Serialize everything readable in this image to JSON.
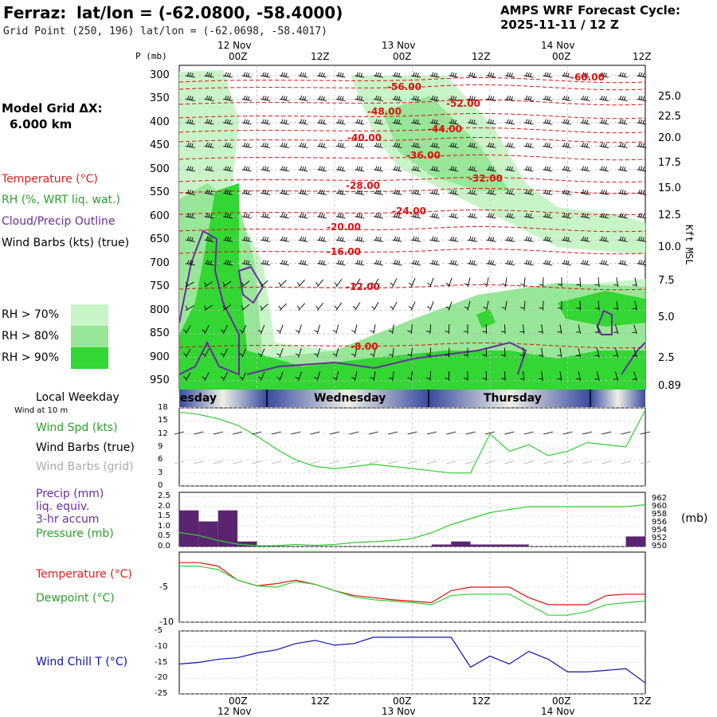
{
  "header": {
    "station": "Ferraz:",
    "latlon": "lat/lon = (-62.0800, -58.4000)",
    "grid_point": "Grid Point (250, 196) lat/lon = (-62.0698, -58.4017)",
    "cycle_title": "AMPS WRF Forecast Cycle:",
    "cycle_value": "2025-11-11 / 12  Z"
  },
  "sidebar": {
    "model_grid_label": "Model Grid ΔX:",
    "model_grid_value": "6.000 km",
    "legend": [
      {
        "text": "Temperature (°C)",
        "color": "#e0201c"
      },
      {
        "text": "RH (%, WRT liq. wat.)",
        "color": "#2ca02c"
      },
      {
        "text": "Cloud/Precip Outline",
        "color": "#6a2c9e"
      },
      {
        "text": "Wind Barbs (kts) (true)",
        "color": "#000000"
      }
    ],
    "rh_levels": [
      {
        "text": "RH > 70%",
        "color": "#c8f5c8"
      },
      {
        "text": "RH > 80%",
        "color": "#8fe08f"
      },
      {
        "text": "RH > 90%",
        "color": "#2fd62f"
      }
    ]
  },
  "colors": {
    "temp": "#e01010",
    "rh70": "#c8f5c8",
    "rh80": "#98e698",
    "rh90": "#33d633",
    "cloud": "#6a2c9e",
    "wind": "#33cc33",
    "precip": "#5a2470",
    "pressure": "#33cc33",
    "dew": "#33cc33",
    "chill": "#1010b0",
    "day_band": "#3a4aa0"
  },
  "time_axis": {
    "top_labels": [
      {
        "top": "12 Nov",
        "bottom": "00Z"
      },
      {
        "top": "",
        "bottom": "12Z"
      },
      {
        "top": "13 Nov",
        "bottom": "00Z"
      },
      {
        "top": "",
        "bottom": "12Z"
      },
      {
        "top": "14 Nov",
        "bottom": "00Z"
      },
      {
        "top": "",
        "bottom": "12Z"
      }
    ],
    "hours": [
      12,
      24,
      36,
      48,
      60,
      72
    ]
  },
  "main_panel": {
    "p_label": "P (mb)",
    "right_label": "Kft MSL",
    "pressure_ticks": [
      "300",
      "350",
      "400",
      "450",
      "500",
      "550",
      "600",
      "650",
      "700",
      "750",
      "800",
      "850",
      "900",
      "950"
    ],
    "height_ticks": [
      "25.0",
      "22.5",
      "20.0",
      "17.5",
      "15.0",
      "12.5",
      "10.0",
      "7.5",
      "5.0",
      "2.5",
      "0.89"
    ],
    "temp_labels": [
      "-56.00",
      "-60.00",
      "-52.00",
      "-48.00",
      "-44.00",
      "-40.00",
      "-36.00",
      "-32.00",
      "-28.00",
      "-24.00",
      "-20.00",
      "-16.00",
      "-12.00",
      "-8.00"
    ]
  },
  "weekday_band": {
    "label": "Local Weekday",
    "days": [
      "esday",
      "Wednesday",
      "Thursday"
    ]
  },
  "wind_panel": {
    "note": "Wind at 10 m",
    "labels": [
      {
        "text": "Wind Spd (kts)",
        "color": "#2ca02c"
      },
      {
        "text": "Wind Barbs (true)",
        "color": "#000000"
      },
      {
        "text": "Wind Barbs (grid)",
        "color": "#aaaaaa"
      }
    ],
    "ticks": [
      "18",
      "15",
      "12",
      "9",
      "6",
      "3",
      "0"
    ]
  },
  "precip_panel": {
    "labels": [
      {
        "text": "Precip (mm)",
        "color": "#6a2c9e"
      },
      {
        "text": "liq. equiv.",
        "color": "#6a2c9e"
      },
      {
        "text": "3-hr accum",
        "color": "#6a2c9e"
      },
      {
        "text": "Pressure (mb)",
        "color": "#2ca02c"
      }
    ],
    "left_ticks": [
      "2.5",
      "2.0",
      "1.5",
      "1.0",
      "0.5",
      "0.0"
    ],
    "right_ticks": [
      "962",
      "960",
      "958",
      "956",
      "954",
      "952",
      "950"
    ],
    "right_unit": "(mb)"
  },
  "temp_panel": {
    "labels": [
      {
        "text": "Temperature (°C)",
        "color": "#e0201c"
      },
      {
        "text": "Dewpoint (°C)",
        "color": "#2ca02c"
      }
    ],
    "ticks": [
      "-5",
      "-10"
    ]
  },
  "chill_panel": {
    "label": "Wind Chill T (°C)",
    "ticks": [
      "-5",
      "-10",
      "-15",
      "-20",
      "-25"
    ]
  },
  "chart_data": [
    {
      "type": "line",
      "title": "Wind Spd (kts)",
      "x_hours": [
        0,
        3,
        6,
        9,
        12,
        15,
        18,
        21,
        24,
        27,
        30,
        33,
        36,
        39,
        42,
        45,
        48,
        51,
        54,
        57,
        60,
        63,
        66,
        69,
        72
      ],
      "values": [
        17,
        16.5,
        15.5,
        14,
        11.5,
        8.5,
        6,
        4.5,
        4,
        4.5,
        5,
        4.5,
        4,
        3.5,
        3,
        3,
        12,
        8,
        9.5,
        7,
        8,
        10,
        9.5,
        9,
        17.5
      ],
      "ylim": [
        0,
        18
      ]
    },
    {
      "type": "bar",
      "title": "Precip (mm) liq. equiv. 3-hr accum",
      "x_hours": [
        0,
        3,
        6,
        9,
        12,
        15,
        18,
        21,
        24,
        27,
        30,
        33,
        36,
        39,
        42,
        45,
        48,
        51,
        54,
        57,
        60,
        63,
        66,
        69
      ],
      "values": [
        1.8,
        1.25,
        1.8,
        0.25,
        0,
        0,
        0,
        0,
        0,
        0,
        0,
        0,
        0,
        0.1,
        0.25,
        0.1,
        0.1,
        0.1,
        0,
        0,
        0,
        0,
        0,
        0.5
      ],
      "ylim": [
        0,
        2.5
      ]
    },
    {
      "type": "line",
      "title": "Pressure (mb)",
      "x_hours": [
        0,
        3,
        6,
        9,
        12,
        15,
        18,
        21,
        24,
        27,
        30,
        33,
        36,
        39,
        42,
        45,
        48,
        51,
        54,
        57,
        60,
        63,
        66,
        69,
        72
      ],
      "values": [
        953.5,
        952.8,
        951.5,
        950.6,
        950.2,
        950.2,
        950.5,
        950.3,
        950.5,
        951.0,
        951.2,
        951.5,
        952.0,
        953.5,
        955.5,
        957.0,
        958.5,
        959.3,
        960.0,
        960.0,
        960.0,
        960.0,
        960.0,
        960.0,
        960.5
      ],
      "ylim": [
        950,
        962
      ]
    },
    {
      "type": "line",
      "title": "Temperature / Dewpoint (°C)",
      "x_hours": [
        0,
        3,
        6,
        9,
        12,
        15,
        18,
        21,
        24,
        27,
        30,
        33,
        36,
        39,
        42,
        45,
        48,
        51,
        54,
        57,
        60,
        63,
        66,
        69,
        72
      ],
      "series": [
        {
          "name": "Temperature (°C)",
          "values": [
            -1.5,
            -1.5,
            -2,
            -4,
            -4.8,
            -4.5,
            -4,
            -4.6,
            -5.5,
            -6.2,
            -6.5,
            -6.8,
            -7,
            -7.2,
            -5.5,
            -5,
            -5,
            -5,
            -6.5,
            -7.5,
            -7.5,
            -7.5,
            -6.2,
            -6,
            -6
          ]
        },
        {
          "name": "Dewpoint (°C)",
          "values": [
            -2,
            -2,
            -2.5,
            -4,
            -4.8,
            -5,
            -4.2,
            -4.6,
            -5.5,
            -6.4,
            -6.8,
            -7,
            -7.2,
            -7.5,
            -6.2,
            -6,
            -6,
            -6,
            -7.5,
            -9,
            -9,
            -8.5,
            -7.5,
            -7.2,
            -7
          ]
        }
      ],
      "ylim": [
        -10,
        0
      ]
    },
    {
      "type": "line",
      "title": "Wind Chill T (°C)",
      "x_hours": [
        0,
        3,
        6,
        9,
        12,
        15,
        18,
        21,
        24,
        27,
        30,
        33,
        36,
        39,
        42,
        45,
        48,
        51,
        54,
        57,
        60,
        63,
        66,
        69,
        72
      ],
      "values": [
        -15.5,
        -15,
        -14,
        -13.5,
        -12,
        -11,
        -9,
        -8,
        -9.5,
        -9,
        -7,
        -7,
        -7,
        -7,
        -7,
        -16.5,
        -13,
        -15.5,
        -11.5,
        -14,
        -18,
        -18,
        -17.5,
        -17,
        -21.5
      ],
      "ylim": [
        -25,
        -5
      ]
    }
  ]
}
